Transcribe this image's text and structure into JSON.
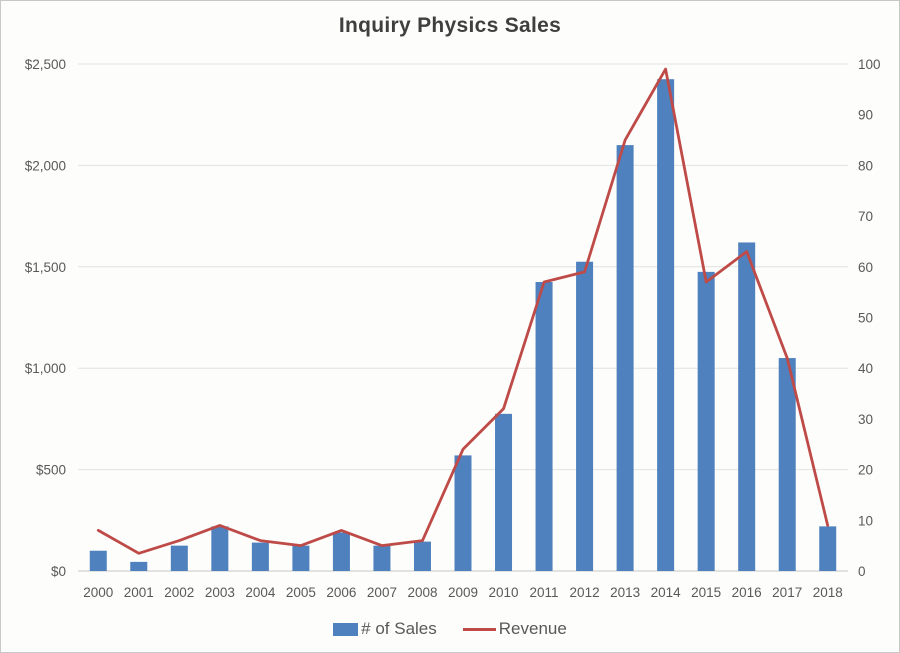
{
  "chart_data": {
    "type": "bar+line",
    "title": "Inquiry Physics Sales",
    "categories": [
      "2000",
      "2001",
      "2002",
      "2003",
      "2004",
      "2005",
      "2006",
      "2007",
      "2008",
      "2009",
      "2010",
      "2011",
      "2012",
      "2013",
      "2014",
      "2015",
      "2016",
      "2017",
      "2018"
    ],
    "series": [
      {
        "name": "# of Sales",
        "type": "bar",
        "axis": "left",
        "color": "#4e81bd",
        "values": [
          100,
          45,
          125,
          220,
          140,
          125,
          190,
          125,
          145,
          570,
          775,
          1425,
          1525,
          2100,
          2425,
          1475,
          1620,
          1050,
          220
        ]
      },
      {
        "name": "Revenue",
        "type": "line",
        "axis": "right",
        "color": "#be4b48",
        "values": [
          8,
          3.5,
          6,
          9,
          6,
          5,
          8,
          5,
          6,
          24,
          32,
          57,
          59,
          85,
          99,
          57,
          63,
          42,
          9
        ]
      }
    ],
    "left_axis": {
      "min": 0,
      "max": 2500,
      "step": 500,
      "tick_labels": [
        "$0",
        "$500",
        "$1,000",
        "$1,500",
        "$2,000",
        "$2,500"
      ]
    },
    "right_axis": {
      "min": 0,
      "max": 100,
      "step": 10,
      "tick_labels": [
        "0",
        "10",
        "20",
        "30",
        "40",
        "50",
        "60",
        "70",
        "80",
        "90",
        "100"
      ]
    },
    "legend_position": "bottom",
    "grid": true
  },
  "colors": {
    "background": "#fdfdfb",
    "border": "#c8c8c6",
    "gridline": "#e2e2e0",
    "axis_line": "#c6c6c6",
    "tick_label": "#595959",
    "title": "#3f3f3f"
  }
}
